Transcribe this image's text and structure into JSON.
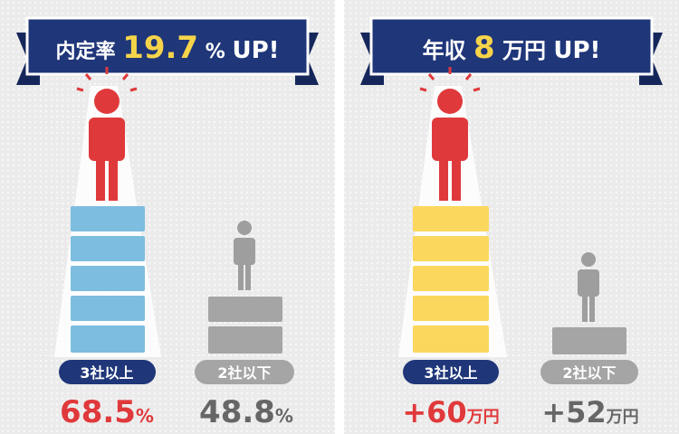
{
  "panels": [
    {
      "banner": {
        "prefix": "内定率",
        "number": "19.7",
        "unit": "%",
        "suffix": "UP!"
      },
      "groups": [
        {
          "label": "3社以上",
          "value": "68.5",
          "unit": "%"
        },
        {
          "label": "2社以下",
          "value": "48.8",
          "unit": "%"
        }
      ]
    },
    {
      "banner": {
        "prefix": "年収",
        "number": "8",
        "unit": "万円",
        "suffix": "UP!"
      },
      "groups": [
        {
          "label": "3社以上",
          "value": "+60",
          "unit": "万円"
        },
        {
          "label": "2社以下",
          "value": "+52",
          "unit": "万円"
        }
      ]
    }
  ]
}
